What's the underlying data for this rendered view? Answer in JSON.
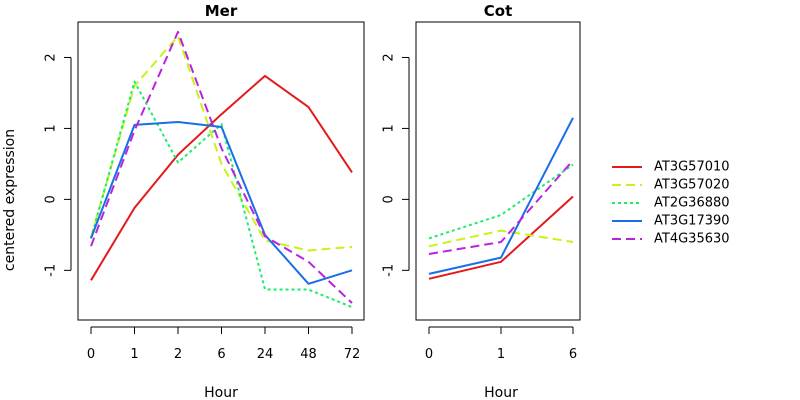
{
  "chart_data": {
    "type": "line",
    "ylabel": "centered expression",
    "series_styles": [
      {
        "name": "AT3G57010",
        "color": "#e31a1c",
        "dash": "solid"
      },
      {
        "name": "AT3G57020",
        "color": "#c8f21a",
        "dash": "dashed"
      },
      {
        "name": "AT2G36880",
        "color": "#1aee6a",
        "dash": "dotted"
      },
      {
        "name": "AT3G17390",
        "color": "#1a6ee8",
        "dash": "solid"
      },
      {
        "name": "AT4G35630",
        "color": "#bb22e0",
        "dash": "dashed"
      }
    ],
    "legend_position": "right",
    "panels": [
      {
        "title": "Mer",
        "xlabel": "Hour",
        "categories": [
          "0",
          "1",
          "2",
          "6",
          "24",
          "48",
          "72"
        ],
        "ylim": [
          -1.7,
          2.5
        ],
        "yticks": [
          -1,
          0,
          1,
          2
        ],
        "series": [
          {
            "name": "AT3G57010",
            "values": [
              -1.14,
              -0.12,
              0.63,
              1.2,
              1.74,
              1.3,
              0.38
            ]
          },
          {
            "name": "AT3G57020",
            "values": [
              -0.53,
              1.6,
              2.3,
              0.5,
              -0.58,
              -0.72,
              -0.67
            ]
          },
          {
            "name": "AT2G36880",
            "values": [
              -0.55,
              1.66,
              0.52,
              1.06,
              -1.27,
              -1.27,
              -1.52
            ]
          },
          {
            "name": "AT3G17390",
            "values": [
              -0.55,
              1.05,
              1.09,
              1.02,
              -0.5,
              -1.19,
              -1.0
            ]
          },
          {
            "name": "AT4G35630",
            "values": [
              -0.66,
              0.97,
              2.36,
              0.72,
              -0.52,
              -0.88,
              -1.46
            ]
          }
        ]
      },
      {
        "title": "Cot",
        "xlabel": "Hour",
        "categories": [
          "0",
          "1",
          "6"
        ],
        "ylim": [
          -1.7,
          2.5
        ],
        "yticks": [
          -1,
          0,
          1,
          2
        ],
        "series": [
          {
            "name": "AT3G57010",
            "values": [
              -1.12,
              -0.88,
              0.04
            ]
          },
          {
            "name": "AT3G57020",
            "values": [
              -0.66,
              -0.44,
              -0.6
            ]
          },
          {
            "name": "AT2G36880",
            "values": [
              -0.55,
              -0.22,
              0.49
            ]
          },
          {
            "name": "AT3G17390",
            "values": [
              -1.05,
              -0.82,
              1.15
            ]
          },
          {
            "name": "AT4G35630",
            "values": [
              -0.77,
              -0.6,
              0.55
            ]
          }
        ]
      }
    ]
  }
}
